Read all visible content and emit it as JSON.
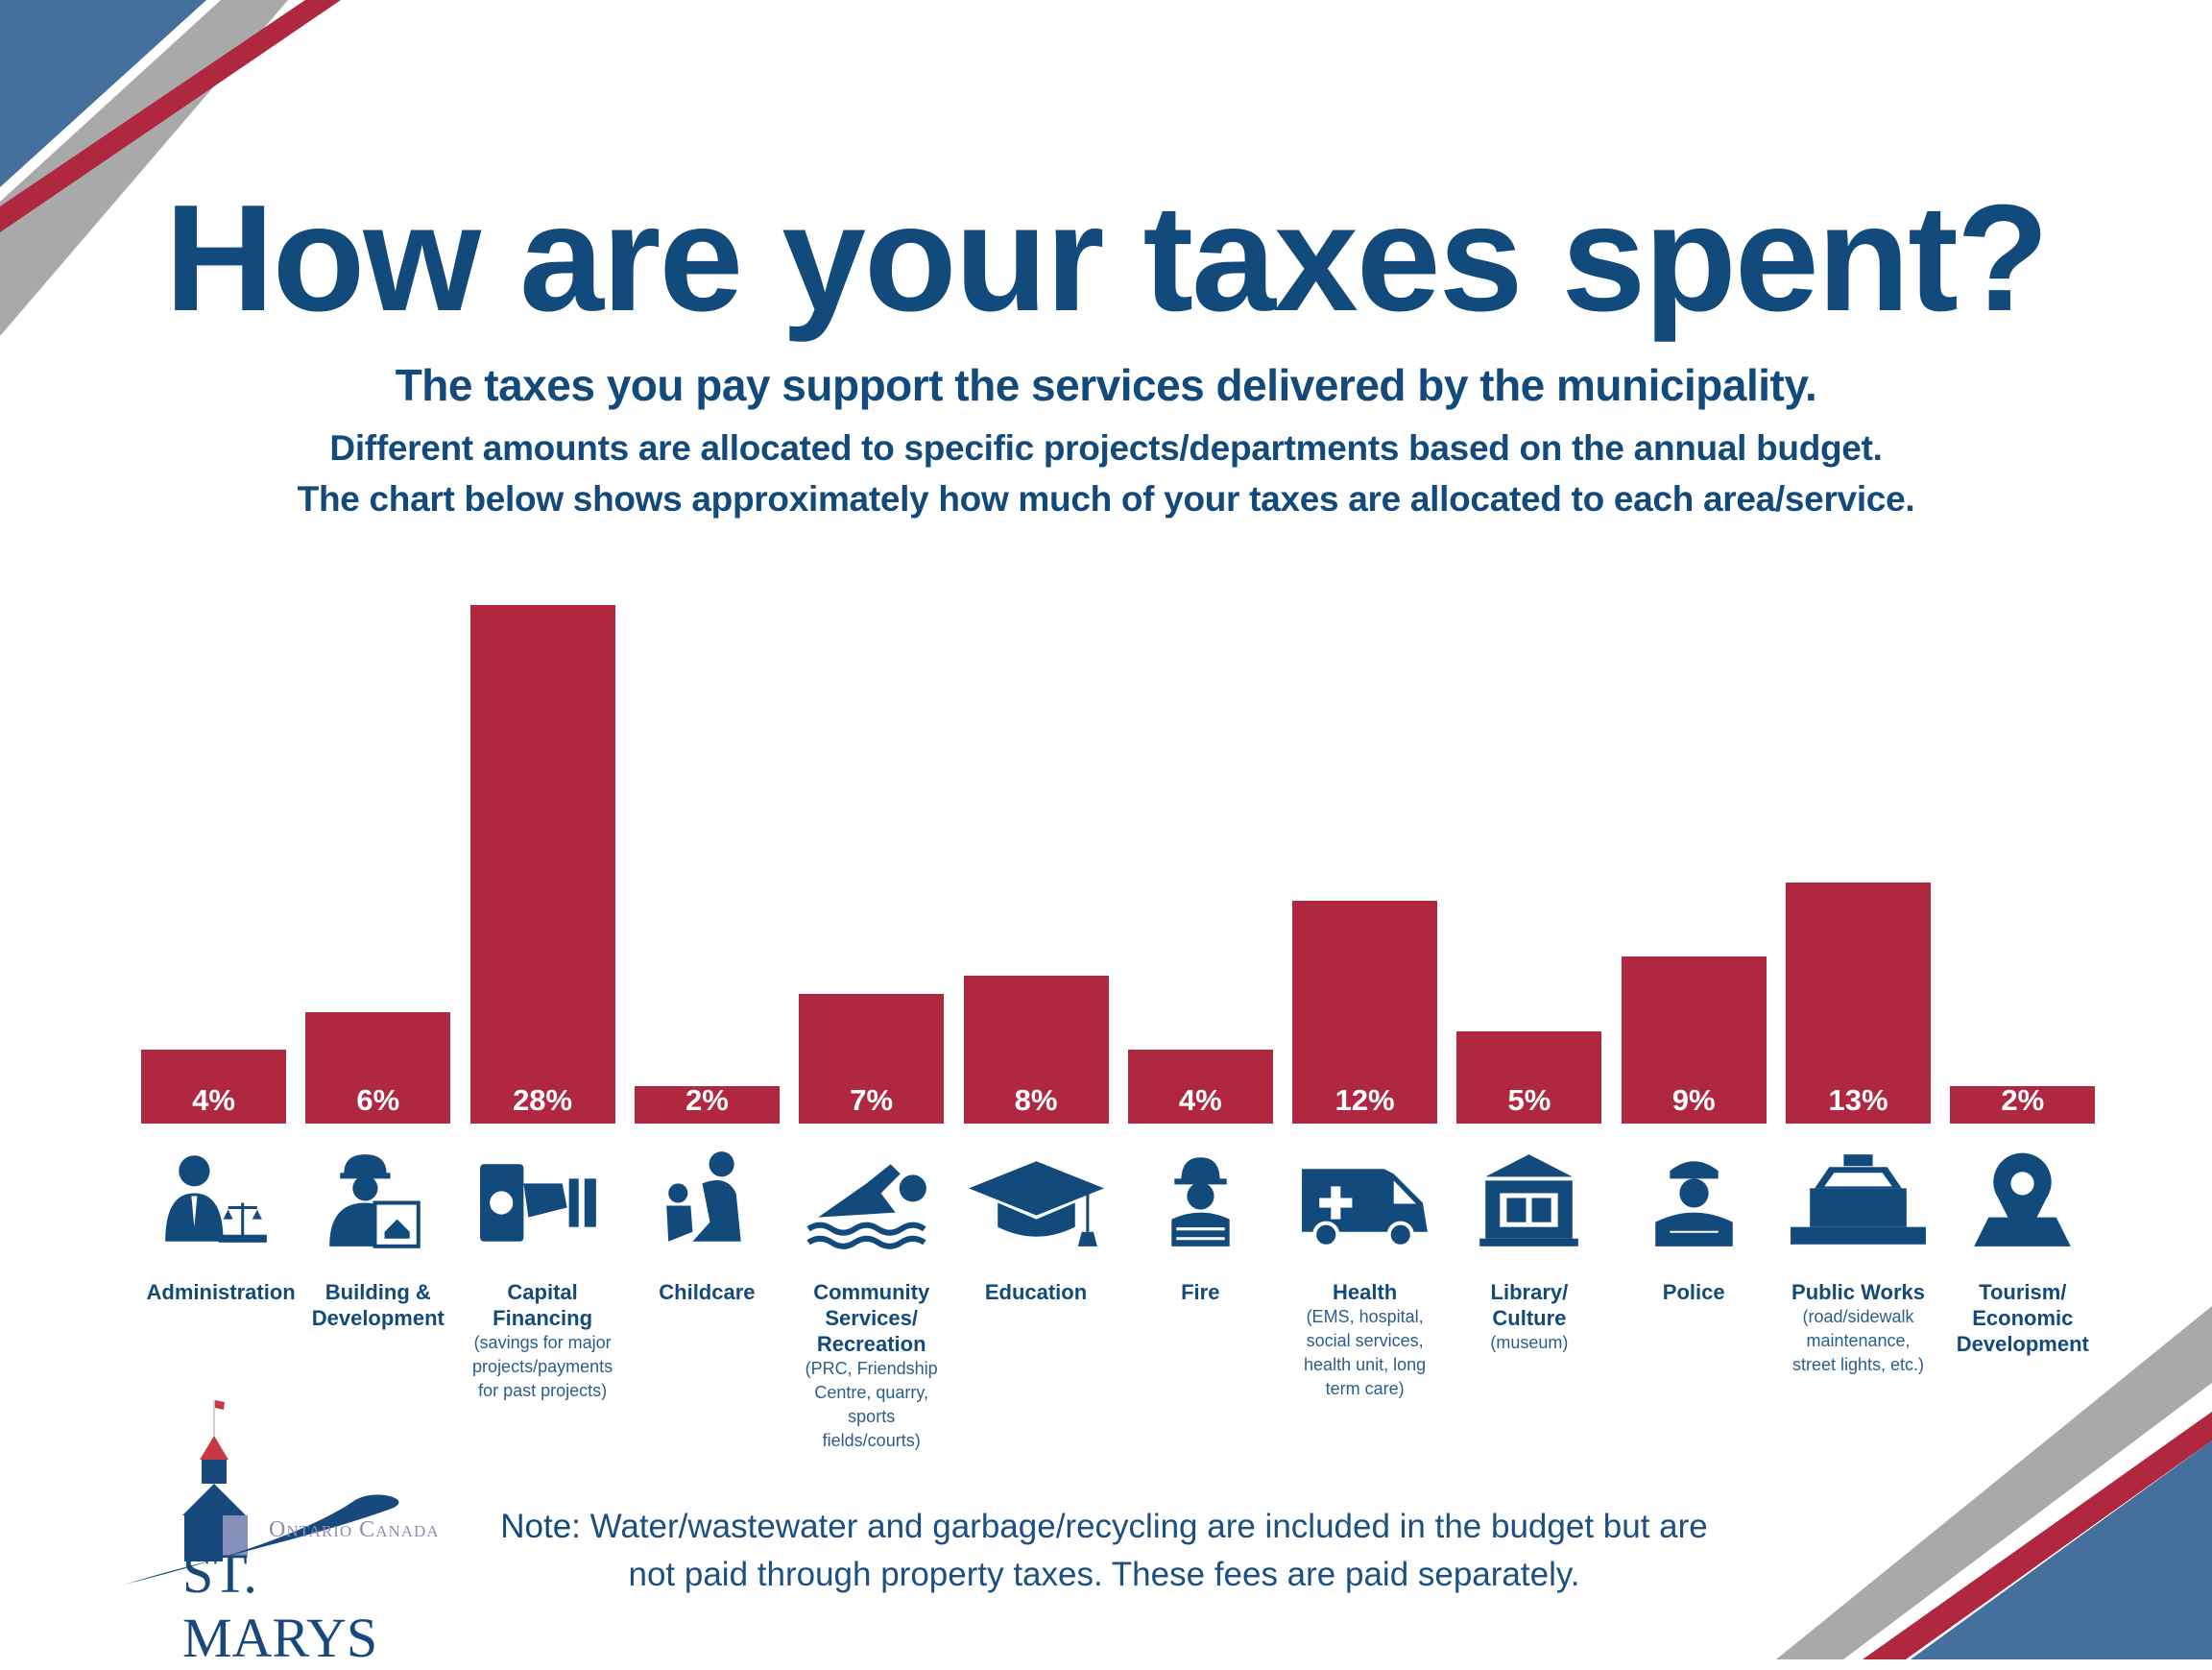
{
  "header": {
    "title": "How are your taxes spent?",
    "subtitle": "The taxes you pay support the services delivered by the municipality.",
    "line2": "Different amounts are allocated to specific projects/departments based on the annual budget.",
    "line3": "The chart below shows approximately how much of your taxes are allocated to each area/service."
  },
  "colors": {
    "bar": "#b0283f",
    "text": "#134a7c",
    "accent_blue": "#456f9c",
    "accent_gray": "#a9a9a9"
  },
  "chart_data": {
    "type": "bar",
    "unit": "%",
    "categories": [
      "Administration",
      "Building & Development",
      "Capital Financing",
      "Childcare",
      "Community Services/ Recreation",
      "Education",
      "Fire",
      "Health",
      "Library/ Culture",
      "Police",
      "Public Works",
      "Tourism/ Economic Development"
    ],
    "values": [
      4,
      6,
      28,
      2,
      7,
      8,
      4,
      12,
      5,
      9,
      13,
      2
    ],
    "data_labels": [
      "4%",
      "6%",
      "28%",
      "2%",
      "7%",
      "8%",
      "4%",
      "12%",
      "5%",
      "9%",
      "13%",
      "2%"
    ],
    "items": [
      {
        "name": "Administration",
        "desc": "",
        "icon": "administrator-scales-icon"
      },
      {
        "name": "Building & Development",
        "desc": "",
        "icon": "builder-blueprint-icon"
      },
      {
        "name": "Capital Financing",
        "desc": "(savings for major projects/payments for past projects)",
        "icon": "hand-money-icon"
      },
      {
        "name": "Childcare",
        "desc": "",
        "icon": "parent-child-icon"
      },
      {
        "name": "Community Services/ Recreation",
        "desc": "(PRC, Friendship Centre, quarry, sports fields/courts)",
        "icon": "swimmer-icon"
      },
      {
        "name": "Education",
        "desc": "",
        "icon": "graduation-cap-icon"
      },
      {
        "name": "Fire",
        "desc": "",
        "icon": "firefighter-icon"
      },
      {
        "name": "Health",
        "desc": "(EMS, hospital, social services, health unit, long term care)",
        "icon": "ambulance-icon"
      },
      {
        "name": "Library/ Culture",
        "desc": "(museum)",
        "icon": "library-building-icon"
      },
      {
        "name": "Police",
        "desc": "",
        "icon": "police-officer-icon"
      },
      {
        "name": "Public Works",
        "desc": "(road/sidewalk maintenance, street lights, etc.)",
        "icon": "snowplow-icon"
      },
      {
        "name": "Tourism/ Economic Development",
        "desc": "",
        "icon": "map-pin-icon"
      }
    ],
    "ylim": [
      0,
      30
    ],
    "grid": false,
    "legend": "none"
  },
  "note": {
    "label": "Note:",
    "text": " Water/wastewater and garbage/recycling are included in the budget but are not paid through property taxes. These fees are paid separately."
  },
  "logo": {
    "top": "Ontario Canada",
    "name": "ST. MARYS"
  }
}
